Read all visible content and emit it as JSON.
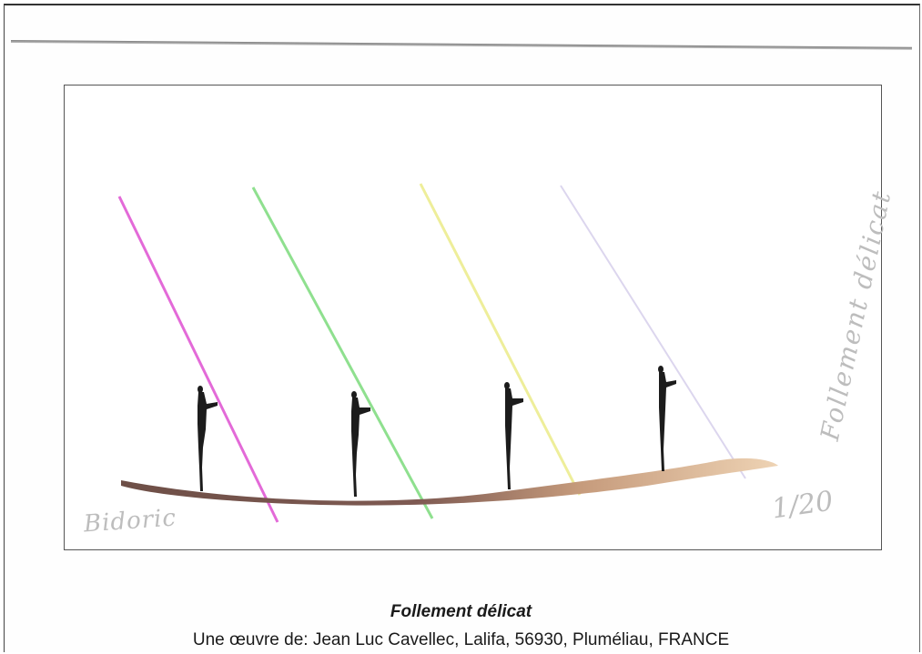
{
  "artwork": {
    "signature": "Bidoric",
    "edition": "1/20",
    "handwritten_title": "Follement délicat",
    "colors": {
      "ray_magenta": "#e36ad8",
      "ray_green": "#8fe08f",
      "ray_yellow": "#eeee9a",
      "ray_lavender": "#dcd6ee",
      "branch": "#7a5a4e",
      "figure": "#1c1c1c"
    }
  },
  "caption": {
    "title": "Follement délicat",
    "credit": "Une œuvre de: Jean Luc Cavellec, Lalifa, 56930, Pluméliau, FRANCE"
  }
}
